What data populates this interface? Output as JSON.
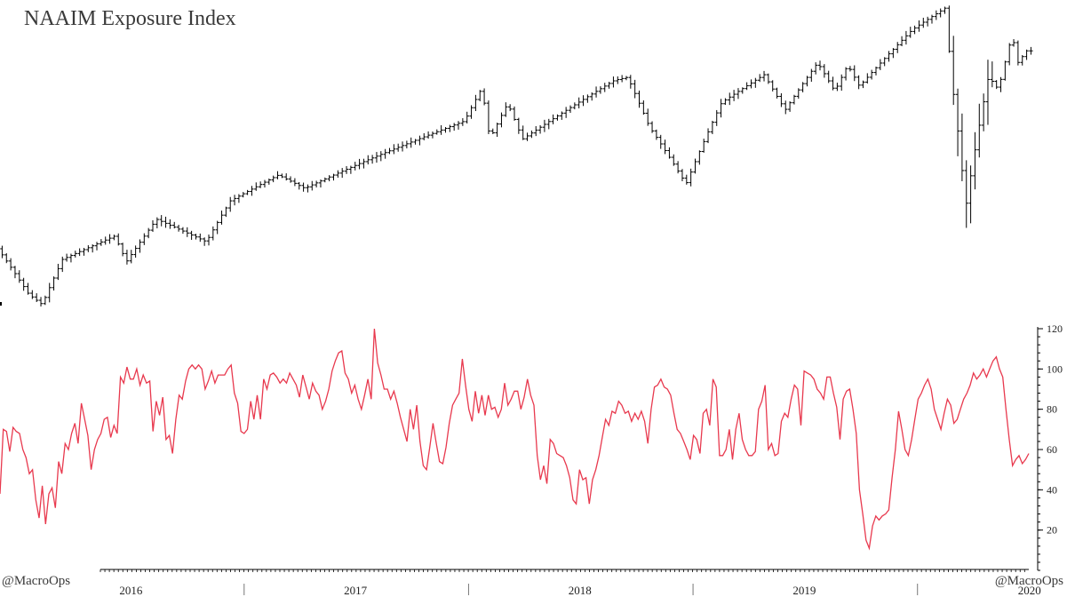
{
  "title": "NAAIM Exposure Index",
  "watermark_left": "@MacroOps",
  "watermark_right": "@MacroOps",
  "colors": {
    "price_bars": "#000000",
    "naaim_line": "#e8394e",
    "axis": "#000000"
  },
  "chart_data": [
    {
      "type": "ohlc",
      "scale": "log",
      "grid": false,
      "x_range": [
        "2015-12-01",
        "2020-06-30"
      ],
      "anchors": [
        [
          "2015-12-01",
          2055
        ],
        [
          "2016-01-20",
          1870
        ],
        [
          "2016-02-11",
          1830
        ],
        [
          "2016-03-15",
          2010
        ],
        [
          "2016-06-08",
          2110
        ],
        [
          "2016-06-27",
          2000
        ],
        [
          "2016-08-15",
          2185
        ],
        [
          "2016-11-04",
          2085
        ],
        [
          "2016-12-13",
          2270
        ],
        [
          "2017-03-01",
          2395
        ],
        [
          "2017-04-13",
          2330
        ],
        [
          "2017-07-27",
          2475
        ],
        [
          "2017-12-29",
          2680
        ],
        [
          "2018-01-26",
          2870
        ],
        [
          "2018-02-08",
          2580
        ],
        [
          "2018-03-09",
          2780
        ],
        [
          "2018-04-02",
          2580
        ],
        [
          "2018-08-29",
          2915
        ],
        [
          "2018-09-20",
          2935
        ],
        [
          "2018-10-25",
          2650
        ],
        [
          "2018-12-24",
          2350
        ],
        [
          "2019-02-20",
          2785
        ],
        [
          "2019-04-30",
          2950
        ],
        [
          "2019-06-03",
          2740
        ],
        [
          "2019-07-26",
          3025
        ],
        [
          "2019-08-23",
          2850
        ],
        [
          "2019-09-13",
          3010
        ],
        [
          "2019-10-02",
          2880
        ],
        [
          "2019-12-27",
          3240
        ],
        [
          "2020-02-19",
          3390
        ],
        [
          "2020-02-28",
          2950
        ],
        [
          "2020-03-23",
          2240
        ],
        [
          "2020-04-29",
          2940
        ],
        [
          "2020-05-15",
          2860
        ],
        [
          "2020-06-08",
          3230
        ],
        [
          "2020-06-11",
          3000
        ],
        [
          "2020-06-30",
          3100
        ]
      ]
    },
    {
      "type": "line",
      "grid": false,
      "x_range": [
        "2015-12-01",
        "2020-06-30"
      ],
      "ylim": [
        0,
        120
      ],
      "y_ticks": [
        20,
        40,
        60,
        80,
        100,
        120
      ],
      "x_tick_labels": [
        "2016",
        "2017",
        "2018",
        "2019",
        "2020"
      ],
      "values": [
        [
          38,
          70,
          69,
          59,
          71,
          69,
          68,
          60,
          56,
          48,
          50,
          35,
          26,
          42,
          23,
          38,
          41,
          31,
          54,
          48
        ],
        [
          63,
          60,
          68,
          73,
          63,
          83,
          75,
          67,
          50,
          60,
          65,
          68,
          75,
          76,
          66,
          72,
          68,
          96,
          93,
          101
        ],
        [
          95,
          95,
          100,
          92,
          97,
          93,
          94,
          69,
          84,
          77,
          86,
          65,
          67,
          58,
          75,
          87,
          85,
          94,
          100,
          102
        ],
        [
          100,
          102,
          100,
          90,
          94,
          99,
          93,
          97,
          97,
          97,
          100,
          102,
          88,
          83,
          69,
          68,
          70,
          84,
          75,
          87
        ],
        [
          75,
          95,
          90,
          97,
          98,
          96,
          93,
          95,
          93,
          98,
          95,
          92,
          86,
          97,
          91,
          85,
          93,
          89,
          87,
          80
        ],
        [
          84,
          90,
          99,
          104,
          108,
          109,
          98,
          95,
          88,
          92,
          85,
          80,
          87,
          95,
          85,
          120,
          103,
          97,
          90,
          90
        ],
        [
          85,
          89,
          83,
          76,
          70,
          64,
          80,
          70,
          82,
          64,
          52,
          50,
          61,
          73,
          63,
          54,
          53,
          61,
          73,
          82
        ],
        [
          85,
          88,
          105,
          92,
          80,
          74,
          89,
          78,
          87,
          77,
          87,
          80,
          81,
          76,
          80,
          93,
          82,
          85,
          89,
          89
        ],
        [
          80,
          86,
          95,
          87,
          82,
          57,
          45,
          52,
          43,
          65,
          63,
          58,
          57,
          56,
          52,
          46,
          35,
          33,
          50,
          45
        ],
        [
          46,
          33,
          45,
          50,
          57,
          66,
          75,
          72,
          79,
          78,
          84,
          82,
          78,
          79,
          74,
          78,
          75,
          79,
          74,
          63
        ],
        [
          80,
          91,
          92,
          95,
          91,
          90,
          87,
          78,
          70,
          68,
          64,
          60,
          55,
          67,
          65,
          58,
          78,
          80,
          72,
          95
        ],
        [
          91,
          57,
          57,
          60,
          70,
          55,
          70,
          78,
          65,
          60,
          57,
          57,
          59,
          80,
          84,
          92,
          60,
          63,
          57,
          58
        ],
        [
          74,
          78,
          76,
          85,
          92,
          90,
          72,
          99,
          98,
          97,
          95,
          90,
          88,
          85,
          96,
          96,
          88,
          81,
          65,
          85
        ],
        [
          89,
          90,
          80,
          68,
          40,
          28,
          15,
          11,
          22,
          27,
          25,
          27,
          28,
          30,
          46,
          60,
          79,
          70,
          60,
          57
        ],
        [
          65,
          75,
          85,
          88,
          92,
          95,
          90,
          80,
          75,
          70,
          78,
          85,
          82,
          73,
          75,
          80,
          85,
          88,
          92,
          98
        ],
        [
          95,
          97,
          100,
          96,
          100,
          104,
          106,
          100,
          96,
          80,
          65,
          52,
          55,
          57,
          53,
          55,
          58
        ]
      ]
    }
  ]
}
